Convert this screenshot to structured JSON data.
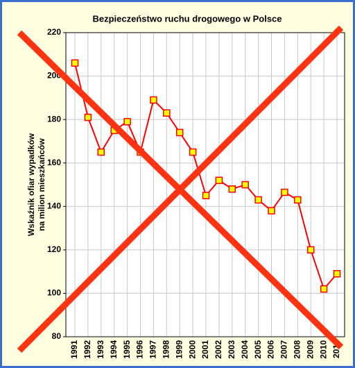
{
  "chart_data": {
    "type": "line",
    "title": "Bezpieczeństwo ruchu drogowego w Polsce",
    "y_label": [
      "Wskaźnik ofiar wypadków",
      "na milion mieszkańców"
    ],
    "categories": [
      "1991",
      "1992",
      "1993",
      "1994",
      "1995",
      "1996",
      "1997",
      "1998",
      "1999",
      "2000",
      "2001",
      "2002",
      "2003",
      "2004",
      "2005",
      "2006",
      "2007",
      "2008",
      "2009",
      "2010",
      "2011"
    ],
    "values": [
      206,
      181,
      165,
      175,
      179,
      165,
      189,
      183,
      174,
      165,
      145,
      152,
      148,
      150,
      143,
      138,
      146.5,
      143,
      120,
      102,
      109
    ],
    "color": "#ff0000",
    "marker_color": "#ffff00",
    "ylim": [
      80,
      220
    ],
    "yticks": [
      80,
      100,
      120,
      140,
      160,
      180,
      200,
      220
    ],
    "grid": true
  }
}
